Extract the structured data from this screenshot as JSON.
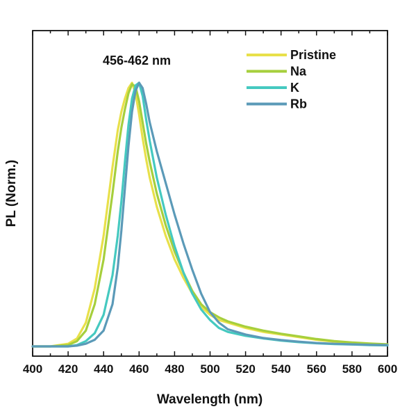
{
  "chart_data": {
    "type": "line",
    "title": "",
    "xlabel": "Wavelength (nm)",
    "ylabel": "PL (Norm.)",
    "xlim": [
      400,
      600
    ],
    "ylim": [
      0,
      1.05
    ],
    "x_ticks": [
      "400",
      "420",
      "440",
      "460",
      "480",
      "500",
      "520",
      "540",
      "560",
      "580",
      "600"
    ],
    "annotation": "456-462 nm",
    "legend_position": "top-right",
    "grid": false,
    "y_tick_labels": false,
    "x": [
      400,
      410,
      420,
      425,
      430,
      435,
      440,
      445,
      448,
      450,
      452,
      454,
      456,
      458,
      460,
      462,
      464,
      466,
      470,
      475,
      480,
      485,
      490,
      495,
      500,
      505,
      510,
      520,
      530,
      540,
      550,
      560,
      570,
      580,
      590,
      600
    ],
    "series": [
      {
        "name": "Pristine",
        "color": "#e8e04a",
        "values": [
          0.0,
          0.0,
          0.01,
          0.03,
          0.09,
          0.22,
          0.42,
          0.68,
          0.82,
          0.89,
          0.94,
          0.98,
          1.0,
          0.96,
          0.88,
          0.79,
          0.71,
          0.64,
          0.53,
          0.42,
          0.33,
          0.26,
          0.2,
          0.15,
          0.12,
          0.1,
          0.09,
          0.07,
          0.055,
          0.045,
          0.035,
          0.025,
          0.018,
          0.013,
          0.01,
          0.007
        ]
      },
      {
        "name": "Na",
        "color": "#a6cf3c",
        "values": [
          0.0,
          0.0,
          0.005,
          0.02,
          0.06,
          0.16,
          0.33,
          0.58,
          0.74,
          0.83,
          0.9,
          0.96,
          0.995,
          0.985,
          0.93,
          0.85,
          0.77,
          0.7,
          0.58,
          0.46,
          0.36,
          0.28,
          0.21,
          0.16,
          0.13,
          0.11,
          0.095,
          0.075,
          0.06,
          0.048,
          0.038,
          0.028,
          0.02,
          0.015,
          0.011,
          0.008
        ]
      },
      {
        "name": "K",
        "color": "#45c9c0",
        "values": [
          0.0,
          0.0,
          0.0,
          0.005,
          0.02,
          0.05,
          0.12,
          0.27,
          0.42,
          0.55,
          0.7,
          0.84,
          0.94,
          0.99,
          1.0,
          0.95,
          0.86,
          0.78,
          0.64,
          0.5,
          0.38,
          0.28,
          0.2,
          0.14,
          0.1,
          0.07,
          0.055,
          0.04,
          0.03,
          0.022,
          0.016,
          0.012,
          0.009,
          0.007,
          0.005,
          0.004
        ]
      },
      {
        "name": "Rb",
        "color": "#5b9ab8",
        "values": [
          0.0,
          0.0,
          0.0,
          0.003,
          0.01,
          0.025,
          0.06,
          0.16,
          0.3,
          0.44,
          0.6,
          0.76,
          0.89,
          0.97,
          1.0,
          0.98,
          0.92,
          0.85,
          0.74,
          0.62,
          0.5,
          0.39,
          0.29,
          0.2,
          0.13,
          0.09,
          0.065,
          0.045,
          0.032,
          0.024,
          0.018,
          0.013,
          0.01,
          0.008,
          0.006,
          0.005
        ]
      }
    ]
  }
}
